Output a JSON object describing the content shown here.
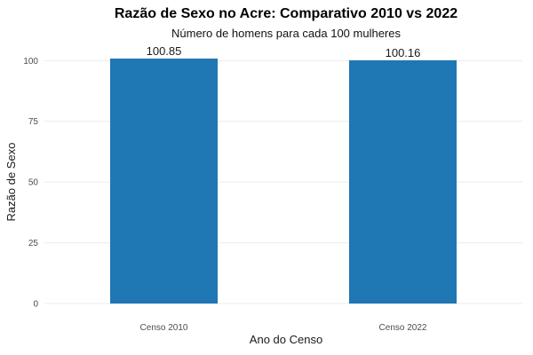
{
  "colors": {
    "bar": "#1f77b4",
    "grid": "#ebebeb"
  },
  "chart_data": {
    "type": "bar",
    "title": "Razão de Sexo no Acre: Comparativo 2010 vs 2022",
    "subtitle": "Número de homens para cada 100 mulheres",
    "xlabel": "Ano do Censo",
    "ylabel": "Razão de Sexo",
    "categories": [
      "Censo 2010",
      "Censo 2022"
    ],
    "values": [
      100.85,
      100.16
    ],
    "data_labels": [
      "100.85",
      "100.16"
    ],
    "ylim": [
      0,
      100.85
    ],
    "yticks": [
      0,
      25,
      50,
      75,
      100
    ],
    "grid": true,
    "legend": "none"
  }
}
